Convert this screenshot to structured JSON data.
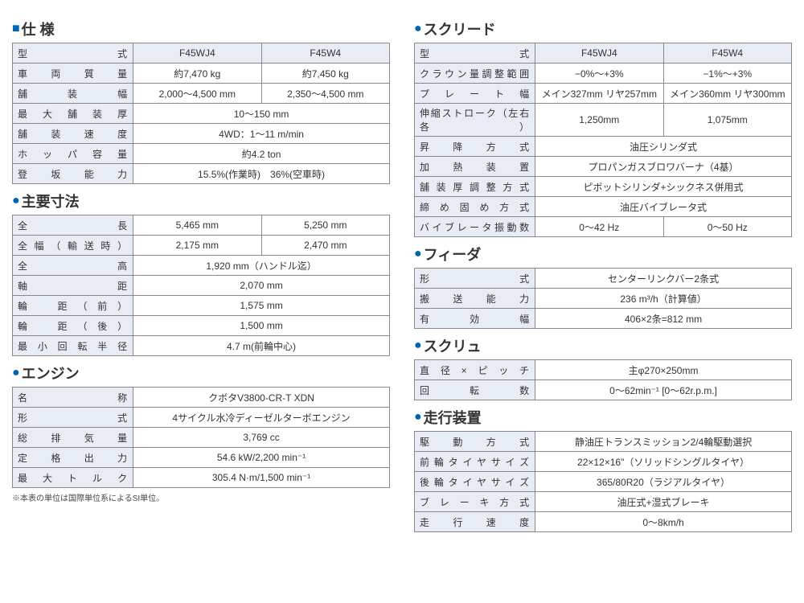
{
  "footnote": "※本表の単位は国際単位系によるSI単位。",
  "left": {
    "spec": {
      "title_mark": "■",
      "title": "仕 様",
      "cols": [
        "F45WJ4",
        "F45W4"
      ],
      "rows": [
        {
          "label": "型　　　　式",
          "v": [
            "F45WJ4",
            "F45W4"
          ],
          "hdr": true
        },
        {
          "label": "車 両 質 量",
          "v": [
            "約7,470 kg",
            "約7,450 kg"
          ]
        },
        {
          "label": "舗　装　幅",
          "v": [
            "2,000～4,500 mm",
            "2,350～4,500 mm"
          ]
        },
        {
          "label": "最 大 舗 装 厚",
          "v": [
            "10～150 mm"
          ],
          "span": 2
        },
        {
          "label": "舗 装 速 度",
          "v": [
            "4WD：1～11 m/min"
          ],
          "span": 2
        },
        {
          "label": "ホ ッ パ 容 量",
          "v": [
            "約4.2 ton"
          ],
          "span": 2
        },
        {
          "label": "登 坂 能 力",
          "v": [
            "15.5%(作業時)　36%(空車時)"
          ],
          "span": 2
        }
      ]
    },
    "dims": {
      "title_mark": "●",
      "title": "主要寸法",
      "rows": [
        {
          "label": "全　　　　長",
          "v": [
            "5,465 mm",
            "5,250 mm"
          ]
        },
        {
          "label": "全幅（輸送時）",
          "v": [
            "2,175 mm",
            "2,470 mm"
          ]
        },
        {
          "label": "全　　　　高",
          "v": [
            "1,920 mm（ハンドル迄）"
          ],
          "span": 2
        },
        {
          "label": "軸　　　　距",
          "v": [
            "2,070 mm"
          ],
          "span": 2
        },
        {
          "label": "輪　距（前）",
          "v": [
            "1,575 mm"
          ],
          "span": 2
        },
        {
          "label": "輪　距（後）",
          "v": [
            "1,500 mm"
          ],
          "span": 2
        },
        {
          "label": "最小回転半径",
          "v": [
            "4.7 m(前輪中心)"
          ],
          "span": 2
        }
      ]
    },
    "engine": {
      "title_mark": "●",
      "title": "エンジン",
      "rows": [
        {
          "label": "名　　　　称",
          "v": [
            "クボタV3800-CR-T XDN"
          ],
          "span": 2
        },
        {
          "label": "形　　　　式",
          "v": [
            "4サイクル水冷ディーゼルターボエンジン"
          ],
          "span": 2
        },
        {
          "label": "総 排 気 量",
          "v": [
            "3,769 cc"
          ],
          "span": 2
        },
        {
          "label": "定 格 出 力",
          "v": [
            "54.6 kW/2,200 min⁻¹"
          ],
          "span": 2
        },
        {
          "label": "最 大 ト ル ク",
          "v": [
            "305.4 N·m/1,500 min⁻¹"
          ],
          "span": 2
        }
      ]
    }
  },
  "right": {
    "screed": {
      "title_mark": "●",
      "title": "スクリード",
      "rows": [
        {
          "label": "型　　　　式",
          "v": [
            "F45WJ4",
            "F45W4"
          ],
          "hdr": true
        },
        {
          "label": "クラウン量調整範囲",
          "v": [
            "−0%～+3%",
            "−1%～+3%"
          ]
        },
        {
          "label": "プ レ ー ト 幅",
          "v": [
            "メイン327mm リヤ257mm",
            "メイン360mm リヤ300mm"
          ]
        },
        {
          "label": "伸縮ストローク（左右各）",
          "v": [
            "1,250mm",
            "1,075mm"
          ]
        },
        {
          "label": "昇 降 方 式",
          "v": [
            "油圧シリンダ式"
          ],
          "span": 2
        },
        {
          "label": "加 熱 装 置",
          "v": [
            "プロパンガスブロワバーナ（4基）"
          ],
          "span": 2
        },
        {
          "label": "舗装厚調整方式",
          "v": [
            "ピボットシリンダ+シックネス併用式"
          ],
          "span": 2
        },
        {
          "label": "締め固め方式",
          "v": [
            "油圧バイブレータ式"
          ],
          "span": 2
        },
        {
          "label": "バイブレータ振動数",
          "v": [
            "0～42 Hz",
            "0～50 Hz"
          ]
        }
      ]
    },
    "feeder": {
      "title_mark": "●",
      "title": "フィーダ",
      "rows": [
        {
          "label": "形　　　　式",
          "v": [
            "センターリンクバー2条式"
          ],
          "span": 2
        },
        {
          "label": "搬 送 能 力",
          "v": [
            "236 m³/h（計算値）"
          ],
          "span": 2
        },
        {
          "label": "有　効　幅",
          "v": [
            "406×2条=812 mm"
          ],
          "span": 2
        }
      ]
    },
    "screw": {
      "title_mark": "●",
      "title": "スクリュ",
      "rows": [
        {
          "label": "直径×ピッチ",
          "v": [
            "主φ270×250mm"
          ],
          "span": 2
        },
        {
          "label": "回　転　数",
          "v": [
            "0～62min⁻¹ [0～62r.p.m.]"
          ],
          "span": 2
        }
      ]
    },
    "travel": {
      "title_mark": "●",
      "title": "走行装置",
      "rows": [
        {
          "label": "駆 動 方 式",
          "v": [
            "静油圧トランスミッション2/4輪駆動選択"
          ],
          "span": 2
        },
        {
          "label": "前輪タイヤサイズ",
          "v": [
            "22×12×16\"（ソリッドシングルタイヤ）"
          ],
          "span": 2
        },
        {
          "label": "後輪タイヤサイズ",
          "v": [
            "365/80R20（ラジアルタイヤ）"
          ],
          "span": 2
        },
        {
          "label": "ブレーキ方式",
          "v": [
            "油圧式+湿式ブレーキ"
          ],
          "span": 2
        },
        {
          "label": "走 行 速 度",
          "v": [
            "0～8km/h"
          ],
          "span": 2
        }
      ]
    }
  }
}
